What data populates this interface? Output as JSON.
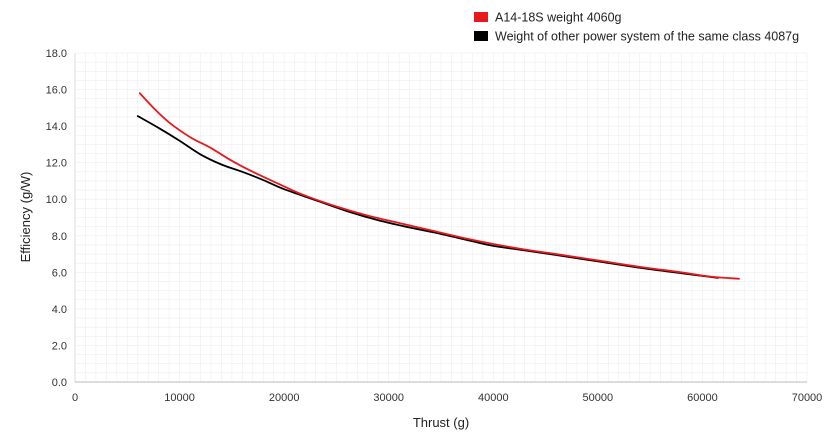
{
  "chart_data": {
    "type": "line",
    "xlabel": "Thrust (g)",
    "ylabel": "Efficiency (g/W)",
    "xlim": [
      0,
      70000
    ],
    "ylim": [
      0,
      18
    ],
    "x_ticks": [
      "0",
      "10000",
      "20000",
      "30000",
      "40000",
      "50000",
      "60000",
      "70000"
    ],
    "y_ticks": [
      "0.0",
      "2.0",
      "4.0",
      "6.0",
      "8.0",
      "10.0",
      "12.0",
      "14.0",
      "16.0",
      "18.0"
    ],
    "grid": true,
    "legend_position": "top-right",
    "series": [
      {
        "name": "A14-18S weight 4060g",
        "color": "#e8191c",
        "points": [
          [
            6200,
            15.8
          ],
          [
            7500,
            15.0
          ],
          [
            9000,
            14.2
          ],
          [
            11000,
            13.4
          ],
          [
            13000,
            12.8
          ],
          [
            15000,
            12.1
          ],
          [
            17000,
            11.5
          ],
          [
            20000,
            10.7
          ],
          [
            22000,
            10.2
          ],
          [
            25000,
            9.6
          ],
          [
            28000,
            9.1
          ],
          [
            31000,
            8.7
          ],
          [
            34000,
            8.3
          ],
          [
            37000,
            7.9
          ],
          [
            40000,
            7.55
          ],
          [
            43000,
            7.25
          ],
          [
            46000,
            7.0
          ],
          [
            50000,
            6.65
          ],
          [
            54000,
            6.3
          ],
          [
            58000,
            6.0
          ],
          [
            61000,
            5.75
          ],
          [
            63500,
            5.65
          ]
        ]
      },
      {
        "name": "Weight of other power system of the same class 4087g",
        "color": "#000000",
        "points": [
          [
            6000,
            14.55
          ],
          [
            8000,
            13.9
          ],
          [
            10000,
            13.2
          ],
          [
            12000,
            12.45
          ],
          [
            14000,
            11.9
          ],
          [
            16000,
            11.5
          ],
          [
            18000,
            11.05
          ],
          [
            20000,
            10.55
          ],
          [
            23000,
            9.95
          ],
          [
            26000,
            9.35
          ],
          [
            29000,
            8.85
          ],
          [
            32000,
            8.45
          ],
          [
            35000,
            8.1
          ],
          [
            38000,
            7.7
          ],
          [
            40000,
            7.45
          ],
          [
            43000,
            7.2
          ],
          [
            46000,
            6.95
          ],
          [
            50000,
            6.6
          ],
          [
            54000,
            6.25
          ],
          [
            58000,
            5.95
          ],
          [
            61500,
            5.7
          ]
        ]
      }
    ]
  }
}
